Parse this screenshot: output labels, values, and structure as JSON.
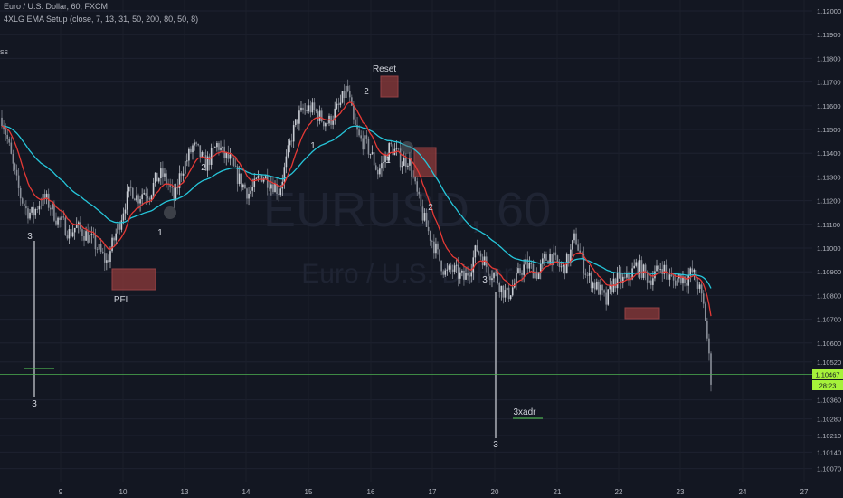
{
  "header": {
    "symbol_line": "Euro / U.S. Dollar, 60, FXCM",
    "indicator_line": "4XLG EMA Setup (close, 7, 13, 31, 50, 200, 80, 50, 8)",
    "legend_fragment": "ss"
  },
  "watermark": {
    "symbol": "EURUSD, 60",
    "name": "Euro / U.S. Dollar"
  },
  "price_tag": {
    "price": "1.10467",
    "countdown": "28:23"
  },
  "annotations": {
    "reset": "Reset",
    "pfl": "PFL",
    "adr": "3xadr",
    "n1": "1",
    "n2": "2",
    "n3": "3"
  },
  "chart_data": {
    "type": "candlestick",
    "symbol": "EURUSD",
    "timeframe": "60",
    "y_axis": {
      "ticks": [
        1.12,
        1.119,
        1.118,
        1.117,
        1.116,
        1.115,
        1.114,
        1.113,
        1.112,
        1.111,
        1.11,
        1.109,
        1.108,
        1.107,
        1.106,
        1.1052,
        1.1036,
        1.1028,
        1.1021,
        1.1014,
        1.1007
      ],
      "labels": [
        "1.12000",
        "1.11900",
        "1.11800",
        "1.11700",
        "1.11600",
        "1.11500",
        "1.11400",
        "1.11300",
        "1.11200",
        "1.11100",
        "1.11000",
        "1.10900",
        "1.10800",
        "1.10700",
        "1.10600",
        "1.10520",
        "1.10360",
        "1.10280",
        "1.10210",
        "1.10140",
        "1.10070"
      ]
    },
    "x_axis": {
      "labels": [
        "9",
        "10",
        "13",
        "14",
        "15",
        "16",
        "17",
        "20",
        "21",
        "22",
        "23",
        "24",
        "27"
      ]
    },
    "current_price": 1.10467,
    "close_path": [
      1.1155,
      1.1145,
      1.1132,
      1.1122,
      1.1116,
      1.1114,
      1.1119,
      1.1121,
      1.1117,
      1.1112,
      1.111,
      1.1106,
      1.1109,
      1.1107,
      1.1105,
      1.1102,
      1.1098,
      1.1094,
      1.1102,
      1.111,
      1.1119,
      1.1125,
      1.1121,
      1.1124,
      1.1123,
      1.1129,
      1.1131,
      1.1127,
      1.112,
      1.1132,
      1.1137,
      1.1143,
      1.114,
      1.1135,
      1.1139,
      1.1144,
      1.1139,
      1.1137,
      1.1131,
      1.1127,
      1.1123,
      1.1126,
      1.1131,
      1.1129,
      1.1127,
      1.1124,
      1.1135,
      1.1147,
      1.1155,
      1.1158,
      1.1159,
      1.1157,
      1.1154,
      1.1153,
      1.1157,
      1.1161,
      1.1168,
      1.1153,
      1.1146,
      1.1144,
      1.1139,
      1.1132,
      1.1137,
      1.1143,
      1.114,
      1.1136,
      1.1138,
      1.1126,
      1.1116,
      1.1108,
      1.1102,
      1.1095,
      1.1089,
      1.1091,
      1.1089,
      1.1087,
      1.1092,
      1.11,
      1.1096,
      1.109,
      1.1089,
      1.1083,
      1.108,
      1.1084,
      1.109,
      1.1093,
      1.1091,
      1.1089,
      1.1095,
      1.1097,
      1.1093,
      1.1091,
      1.1096,
      1.1105,
      1.1095,
      1.1088,
      1.1085,
      1.1082,
      1.1077,
      1.1085,
      1.1087,
      1.1086,
      1.1089,
      1.1093,
      1.109,
      1.1087,
      1.1089,
      1.1093,
      1.1088,
      1.1086,
      1.1088,
      1.1087,
      1.109,
      1.1084,
      1.1073,
      1.1045
    ]
  },
  "colors": {
    "bg": "#131722",
    "ema_fast": "#e53935",
    "ema_slow": "#26c6da",
    "box": "#8e3a3a",
    "price_line": "#4caf50",
    "price_tag_bg": "#a6f23a"
  }
}
